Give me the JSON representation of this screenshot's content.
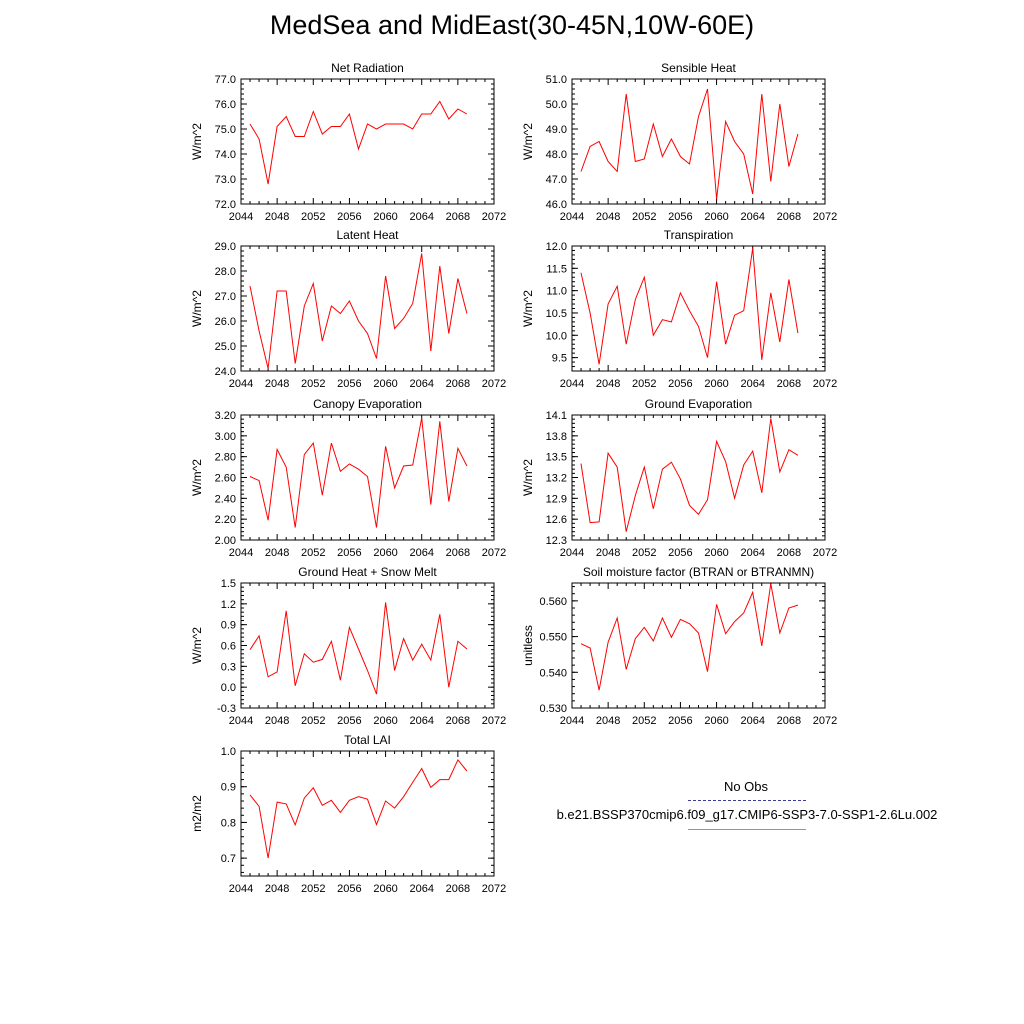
{
  "title": "MedSea and MidEast(30-45N,10W-60E)",
  "colors": {
    "model_line": "#ff0000",
    "obs_line": "#3a3a9a",
    "axis": "#000000"
  },
  "legend": {
    "obs_label": "No Obs",
    "case_label": "b.e21.BSSP370cmip6.f09_g17.CMIP6-SSP3-7.0-SSP1-2.6Lu.002"
  },
  "chart_data": [
    {
      "type": "line",
      "title": "Net Radiation",
      "ylabel": "W/m^2",
      "xlim": [
        2044,
        2072
      ],
      "ylim": [
        72.0,
        77.0
      ],
      "xticks": [
        "2044",
        "2048",
        "2052",
        "2056",
        "2060",
        "2064",
        "2068",
        "2072"
      ],
      "yticks": [
        "72.0",
        "73.0",
        "74.0",
        "75.0",
        "76.0",
        "77.0"
      ],
      "series": [
        {
          "x": [
            2045,
            2046,
            2047,
            2048,
            2049,
            2050,
            2051,
            2052,
            2053,
            2054,
            2055,
            2056,
            2057,
            2058,
            2059,
            2060,
            2061,
            2062,
            2063,
            2064,
            2065,
            2066,
            2067,
            2068,
            2069
          ],
          "values": [
            75.2,
            74.6,
            72.8,
            75.1,
            75.5,
            74.7,
            74.7,
            75.7,
            74.8,
            75.1,
            75.1,
            75.6,
            74.2,
            75.2,
            75.0,
            75.2,
            75.2,
            75.2,
            75.0,
            75.6,
            75.6,
            76.1,
            75.4,
            75.8,
            75.6
          ]
        }
      ]
    },
    {
      "type": "line",
      "title": "Sensible Heat",
      "ylabel": "W/m^2",
      "xlim": [
        2044,
        2072
      ],
      "ylim": [
        46.0,
        51.0
      ],
      "xticks": [
        "2044",
        "2048",
        "2052",
        "2056",
        "2060",
        "2064",
        "2068",
        "2072"
      ],
      "yticks": [
        "46.0",
        "47.0",
        "48.0",
        "49.0",
        "50.0",
        "51.0"
      ],
      "series": [
        {
          "x": [
            2045,
            2046,
            2047,
            2048,
            2049,
            2050,
            2051,
            2052,
            2053,
            2054,
            2055,
            2056,
            2057,
            2058,
            2059,
            2060,
            2061,
            2062,
            2063,
            2064,
            2065,
            2066,
            2067,
            2068,
            2069
          ],
          "values": [
            47.3,
            48.3,
            48.5,
            47.7,
            47.3,
            50.4,
            47.7,
            47.8,
            49.2,
            47.9,
            48.6,
            47.9,
            47.6,
            49.5,
            50.6,
            46.2,
            49.3,
            48.5,
            48.0,
            46.4,
            50.4,
            46.9,
            50.0,
            47.5,
            48.8
          ]
        }
      ]
    },
    {
      "type": "line",
      "title": "Latent Heat",
      "ylabel": "W/m^2",
      "xlim": [
        2044,
        2072
      ],
      "ylim": [
        24.0,
        29.0
      ],
      "xticks": [
        "2044",
        "2048",
        "2052",
        "2056",
        "2060",
        "2064",
        "2068",
        "2072"
      ],
      "yticks": [
        "24.0",
        "25.0",
        "26.0",
        "27.0",
        "28.0",
        "29.0"
      ],
      "series": [
        {
          "x": [
            2045,
            2046,
            2047,
            2048,
            2049,
            2050,
            2051,
            2052,
            2053,
            2054,
            2055,
            2056,
            2057,
            2058,
            2059,
            2060,
            2061,
            2062,
            2063,
            2064,
            2065,
            2066,
            2067,
            2068,
            2069
          ],
          "values": [
            27.4,
            25.6,
            24.1,
            27.2,
            27.2,
            24.3,
            26.6,
            27.5,
            25.2,
            26.6,
            26.3,
            26.8,
            26.0,
            25.5,
            24.5,
            27.8,
            25.7,
            26.1,
            26.7,
            28.7,
            24.8,
            28.2,
            25.5,
            27.7,
            26.3
          ]
        }
      ]
    },
    {
      "type": "line",
      "title": "Transpiration",
      "ylabel": "W/m^2",
      "xlim": [
        2044,
        2072
      ],
      "ylim": [
        9.2,
        12.0
      ],
      "xticks": [
        "2044",
        "2048",
        "2052",
        "2056",
        "2060",
        "2064",
        "2068",
        "2072"
      ],
      "yticks": [
        "9.5",
        "10.0",
        "10.5",
        "11.0",
        "11.5",
        "12.0"
      ],
      "series": [
        {
          "x": [
            2045,
            2046,
            2047,
            2048,
            2049,
            2050,
            2051,
            2052,
            2053,
            2054,
            2055,
            2056,
            2057,
            2058,
            2059,
            2060,
            2061,
            2062,
            2063,
            2064,
            2065,
            2066,
            2067,
            2068,
            2069
          ],
          "values": [
            11.4,
            10.5,
            9.35,
            10.7,
            11.1,
            9.8,
            10.8,
            11.3,
            10.0,
            10.35,
            10.3,
            10.95,
            10.55,
            10.2,
            9.5,
            11.2,
            9.8,
            10.45,
            10.55,
            11.95,
            9.45,
            10.95,
            9.85,
            11.25,
            10.05
          ]
        }
      ]
    },
    {
      "type": "line",
      "title": "Canopy Evaporation",
      "ylabel": "W/m^2",
      "xlim": [
        2044,
        2072
      ],
      "ylim": [
        2.0,
        3.2
      ],
      "xticks": [
        "2044",
        "2048",
        "2052",
        "2056",
        "2060",
        "2064",
        "2068",
        "2072"
      ],
      "yticks": [
        "2.00",
        "2.20",
        "2.40",
        "2.60",
        "2.80",
        "3.00",
        "3.20"
      ],
      "series": [
        {
          "x": [
            2045,
            2046,
            2047,
            2048,
            2049,
            2050,
            2051,
            2052,
            2053,
            2054,
            2055,
            2056,
            2057,
            2058,
            2059,
            2060,
            2061,
            2062,
            2063,
            2064,
            2065,
            2066,
            2067,
            2068,
            2069
          ],
          "values": [
            2.61,
            2.57,
            2.19,
            2.87,
            2.7,
            2.12,
            2.82,
            2.93,
            2.43,
            2.93,
            2.66,
            2.73,
            2.68,
            2.61,
            2.12,
            2.9,
            2.5,
            2.71,
            2.72,
            3.17,
            2.34,
            3.14,
            2.37,
            2.88,
            2.71
          ]
        }
      ]
    },
    {
      "type": "line",
      "title": "Ground Evaporation",
      "ylabel": "W/m^2",
      "xlim": [
        2044,
        2072
      ],
      "ylim": [
        12.3,
        14.1
      ],
      "xticks": [
        "2044",
        "2048",
        "2052",
        "2056",
        "2060",
        "2064",
        "2068",
        "2072"
      ],
      "yticks": [
        "12.3",
        "12.6",
        "12.9",
        "13.2",
        "13.5",
        "13.8",
        "14.1"
      ],
      "series": [
        {
          "x": [
            2045,
            2046,
            2047,
            2048,
            2049,
            2050,
            2051,
            2052,
            2053,
            2054,
            2055,
            2056,
            2057,
            2058,
            2059,
            2060,
            2061,
            2062,
            2063,
            2064,
            2065,
            2066,
            2067,
            2068,
            2069
          ],
          "values": [
            13.4,
            12.55,
            12.56,
            13.55,
            13.35,
            12.42,
            12.94,
            13.35,
            12.75,
            13.32,
            13.42,
            13.18,
            12.8,
            12.67,
            12.88,
            13.72,
            13.43,
            12.9,
            13.38,
            13.58,
            12.98,
            14.05,
            13.28,
            13.6,
            13.52
          ]
        }
      ]
    },
    {
      "type": "line",
      "title": "Ground Heat + Snow Melt",
      "ylabel": "W/m^2",
      "xlim": [
        2044,
        2072
      ],
      "ylim": [
        -0.3,
        1.5
      ],
      "xticks": [
        "2044",
        "2048",
        "2052",
        "2056",
        "2060",
        "2064",
        "2068",
        "2072"
      ],
      "yticks": [
        "-0.3",
        "0.0",
        "0.3",
        "0.6",
        "0.9",
        "1.2",
        "1.5"
      ],
      "series": [
        {
          "x": [
            2045,
            2046,
            2047,
            2048,
            2049,
            2050,
            2051,
            2052,
            2053,
            2054,
            2055,
            2056,
            2057,
            2058,
            2059,
            2060,
            2061,
            2062,
            2063,
            2064,
            2065,
            2066,
            2067,
            2068,
            2069
          ],
          "values": [
            0.54,
            0.74,
            0.15,
            0.22,
            1.1,
            0.02,
            0.48,
            0.36,
            0.4,
            0.66,
            0.1,
            0.86,
            0.55,
            0.24,
            -0.1,
            1.22,
            0.24,
            0.7,
            0.39,
            0.62,
            0.39,
            1.05,
            0.0,
            0.66,
            0.55
          ]
        }
      ]
    },
    {
      "type": "line",
      "title": "Soil moisture factor (BTRAN or BTRANMN)",
      "ylabel": "unitless",
      "xlim": [
        2044,
        2072
      ],
      "ylim": [
        0.53,
        0.565
      ],
      "xticks": [
        "2044",
        "2048",
        "2052",
        "2056",
        "2060",
        "2064",
        "2068",
        "2072"
      ],
      "yticks": [
        "0.530",
        "0.540",
        "0.550",
        "0.560"
      ],
      "series": [
        {
          "x": [
            2045,
            2046,
            2047,
            2048,
            2049,
            2050,
            2051,
            2052,
            2053,
            2054,
            2055,
            2056,
            2057,
            2058,
            2059,
            2060,
            2061,
            2062,
            2063,
            2064,
            2065,
            2066,
            2067,
            2068,
            2069
          ],
          "values": [
            0.548,
            0.5468,
            0.535,
            0.5484,
            0.5552,
            0.5408,
            0.5494,
            0.5526,
            0.5488,
            0.5552,
            0.5498,
            0.5548,
            0.5536,
            0.551,
            0.5402,
            0.559,
            0.5508,
            0.5542,
            0.5566,
            0.5624,
            0.5474,
            0.5648,
            0.551,
            0.558,
            0.5588
          ]
        }
      ]
    },
    {
      "type": "line",
      "title": "Total LAI",
      "ylabel": "m2/m2",
      "xlim": [
        2044,
        2072
      ],
      "ylim": [
        0.65,
        1.0
      ],
      "xticks": [
        "2044",
        "2048",
        "2052",
        "2056",
        "2060",
        "2064",
        "2068",
        "2072"
      ],
      "yticks": [
        "0.7",
        "0.8",
        "0.9",
        "1.0"
      ],
      "series": [
        {
          "x": [
            2045,
            2046,
            2047,
            2048,
            2049,
            2050,
            2051,
            2052,
            2053,
            2054,
            2055,
            2056,
            2057,
            2058,
            2059,
            2060,
            2061,
            2062,
            2063,
            2064,
            2065,
            2066,
            2067,
            2068,
            2069
          ],
          "values": [
            0.877,
            0.845,
            0.7,
            0.857,
            0.852,
            0.793,
            0.868,
            0.897,
            0.848,
            0.862,
            0.828,
            0.862,
            0.872,
            0.865,
            0.794,
            0.86,
            0.84,
            0.872,
            0.912,
            0.951,
            0.898,
            0.92,
            0.92,
            0.975,
            0.944
          ]
        }
      ]
    }
  ]
}
